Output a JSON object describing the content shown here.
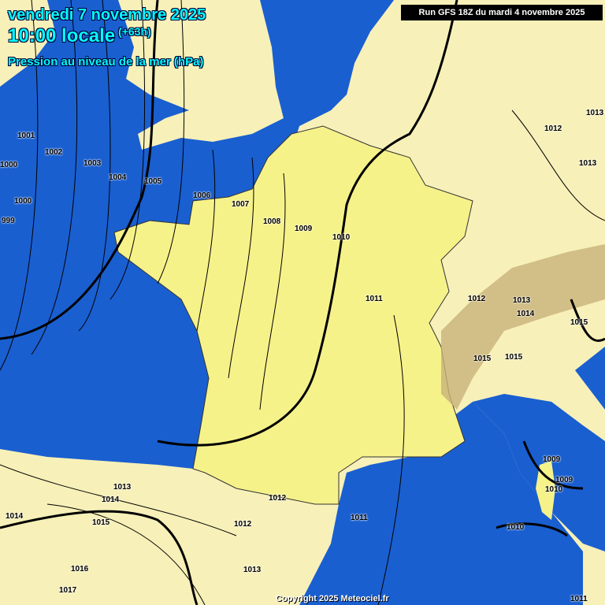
{
  "header": {
    "date": "vendredi 7 novembre 2025",
    "time": "10:00 locale",
    "lead": "(+63h)",
    "parameter": "Pression au niveau de la mer (hPa)",
    "run": "Run GFS 18Z du mardi 4 novembre 2025"
  },
  "colors": {
    "sea": "#1a5fd0",
    "land": "#f7f0b8",
    "france": "#f6f28a",
    "isobar": "#000000",
    "title": "#00ffff"
  },
  "isobar_labels": [
    "1001",
    "1002",
    "1003",
    "1004",
    "1005",
    "1006",
    "1007",
    "1008",
    "1009",
    "1010",
    "1011",
    "1012",
    "1013",
    "1014",
    "1015",
    "1015",
    "1015",
    "1012",
    "1013",
    "1013",
    "1000",
    "1000",
    "999",
    "1013",
    "1014",
    "1014",
    "1015",
    "1012",
    "1012",
    "1011",
    "1016",
    "1017",
    "1013",
    "1009",
    "1009",
    "1010",
    "1010",
    "1011"
  ],
  "footer": {
    "copyright": "Copyright 2025 Meteociel.fr"
  }
}
